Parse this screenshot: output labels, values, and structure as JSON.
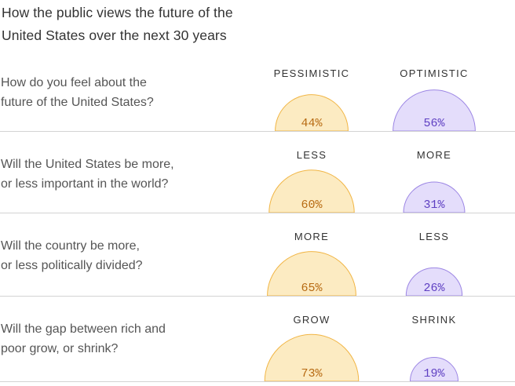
{
  "title": {
    "line1": "How the public views the future of the",
    "line2": "United States over the next 30 years"
  },
  "colors": {
    "negative_fill": "#FCEBC2",
    "negative_stroke": "#F1B544",
    "negative_text": "#B76A12",
    "positive_fill": "#E4DDFB",
    "positive_stroke": "#9C86E4",
    "positive_text": "#5E3FC2",
    "divider": "#D3D3D3"
  },
  "chart_data": {
    "type": "semicircle-comparison",
    "title": "How the public views the future of the United States over the next 30 years",
    "unit": "%",
    "rows": [
      {
        "question": [
          "How do you feel about the",
          "future of the United States?"
        ],
        "left": {
          "label": "PESSIMISTIC",
          "value": 44,
          "text": "44%"
        },
        "right": {
          "label": "OPTIMISTIC",
          "value": 56,
          "text": "56%"
        }
      },
      {
        "question": [
          "Will the United States be more,",
          "or less important in the world?"
        ],
        "left": {
          "label": "LESS",
          "value": 60,
          "text": "60%"
        },
        "right": {
          "label": "MORE",
          "value": 31,
          "text": "31%"
        }
      },
      {
        "question": [
          "Will the country be more,",
          "or less politically divided?"
        ],
        "left": {
          "label": "MORE",
          "value": 65,
          "text": "65%"
        },
        "right": {
          "label": "LESS",
          "value": 26,
          "text": "26%"
        }
      },
      {
        "question": [
          "Will the gap between rich and",
          "poor grow, or shrink?"
        ],
        "left": {
          "label": "GROW",
          "value": 73,
          "text": "73%"
        },
        "right": {
          "label": "SHRINK",
          "value": 19,
          "text": "19%"
        }
      }
    ]
  }
}
